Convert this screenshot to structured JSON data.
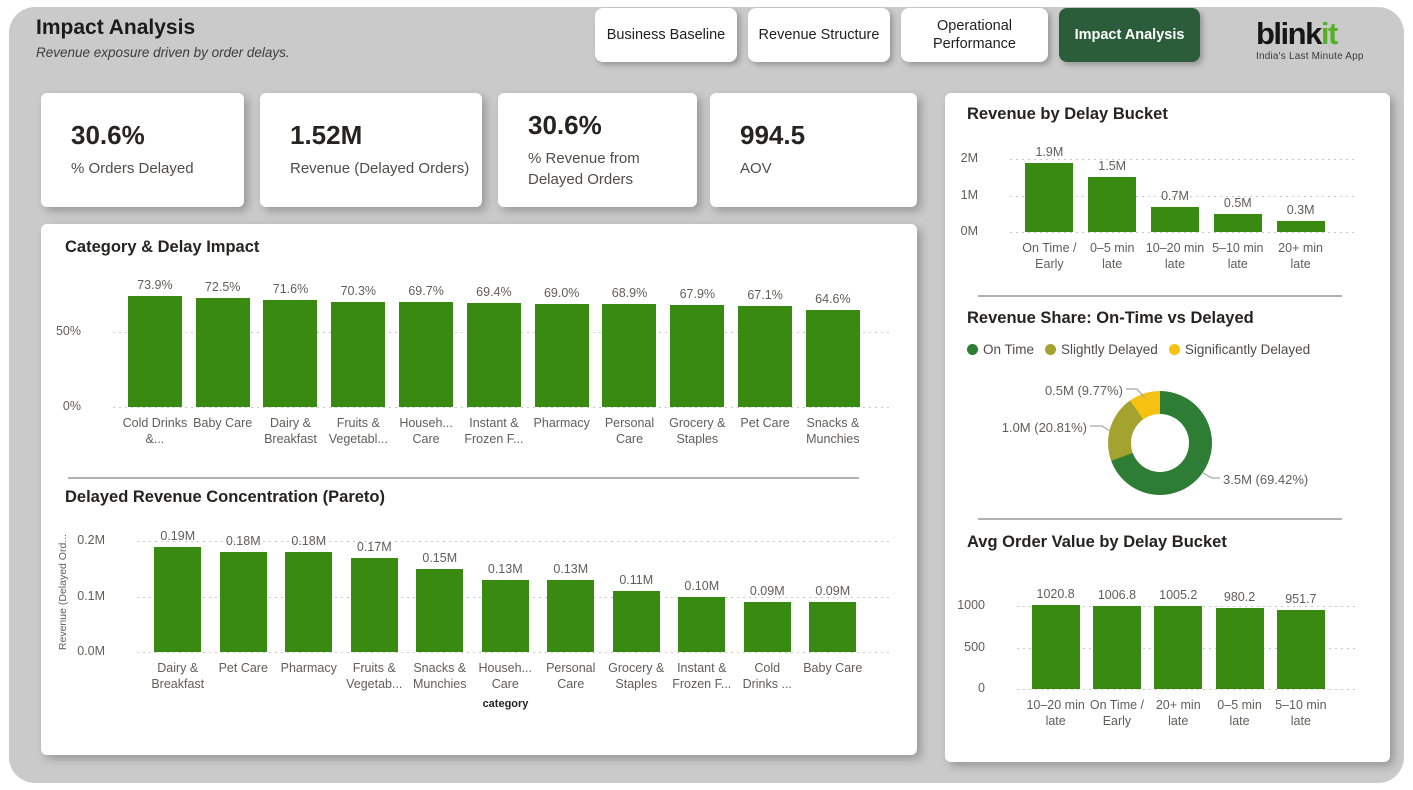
{
  "header": {
    "title": "Impact Analysis",
    "subtitle": "Revenue exposure driven by order delays.",
    "nav": [
      {
        "label": "Business Baseline",
        "active": false
      },
      {
        "label": "Revenue Structure",
        "active": false
      },
      {
        "label": "Operational Performance",
        "active": false
      },
      {
        "label": "Impact Analysis",
        "active": true
      }
    ],
    "logo": {
      "text_black": "blink",
      "text_green": "it",
      "tagline": "India's Last Minute App"
    }
  },
  "kpis": [
    {
      "value": "30.6%",
      "label": "% Orders Delayed"
    },
    {
      "value": "1.52M",
      "label": "Revenue (Delayed Orders)"
    },
    {
      "value": "30.6%",
      "label": "% Revenue from Delayed Orders"
    },
    {
      "value": "994.5",
      "label": "AOV"
    }
  ],
  "colors": {
    "bar_green": "#388a10",
    "donut_green": "#2e7d35",
    "olive": "#a4a32f",
    "yellow": "#f5c211",
    "active_nav_bg": "#2b5d3a",
    "logo_green": "#54b226",
    "panel_bg": "#cacaca"
  },
  "chart_data": [
    {
      "type": "bar",
      "title": "Category & Delay Impact",
      "xlabel": "",
      "ylabel": "",
      "categories": [
        "Cold Drinks &...",
        "Baby Care",
        "Dairy & Breakfast",
        "Fruits & Vegetabl...",
        "Househ... Care",
        "Instant & Frozen F...",
        "Pharmacy",
        "Personal Care",
        "Grocery & Staples",
        "Pet Care",
        "Snacks & Munchies"
      ],
      "values": [
        73.9,
        72.5,
        71.6,
        70.3,
        69.7,
        69.4,
        69.0,
        68.9,
        67.9,
        67.1,
        64.6
      ],
      "data_labels": [
        "73.9%",
        "72.5%",
        "71.6%",
        "70.3%",
        "69.7%",
        "69.4%",
        "69.0%",
        "68.9%",
        "67.9%",
        "67.1%",
        "64.6%"
      ],
      "yticks": [
        {
          "v": 0,
          "label": "0%"
        },
        {
          "v": 50,
          "label": "50%"
        }
      ],
      "ylim": [
        0,
        82
      ],
      "grid": true,
      "legend_position": "none"
    },
    {
      "type": "bar",
      "title": "Delayed Revenue Concentration (Pareto)",
      "xlabel": "category",
      "ylabel": "Revenue (Delayed Ord...",
      "categories": [
        "Dairy & Breakfast",
        "Pet Care",
        "Pharmacy",
        "Fruits & Vegetab...",
        "Snacks & Munchies",
        "Househ... Care",
        "Personal Care",
        "Grocery & Staples",
        "Instant & Frozen F...",
        "Cold Drinks ...",
        "Baby Care"
      ],
      "values": [
        0.19,
        0.18,
        0.18,
        0.17,
        0.15,
        0.13,
        0.13,
        0.11,
        0.1,
        0.09,
        0.09
      ],
      "data_labels": [
        "0.19M",
        "0.18M",
        "0.18M",
        "0.17M",
        "0.15M",
        "0.13M",
        "0.13M",
        "0.11M",
        "0.10M",
        "0.09M",
        "0.09M"
      ],
      "yticks": [
        {
          "v": 0,
          "label": "0.0M"
        },
        {
          "v": 0.1,
          "label": "0.1M"
        },
        {
          "v": 0.2,
          "label": "0.2M"
        }
      ],
      "ylim": [
        0,
        0.213
      ],
      "grid": true,
      "legend_position": "none"
    },
    {
      "type": "bar",
      "title": "Revenue by Delay Bucket",
      "xlabel": "",
      "ylabel": "",
      "categories": [
        "On Time / Early",
        "0–5 min late",
        "10–20 min late",
        "5–10 min late",
        "20+ min late"
      ],
      "values": [
        1.9,
        1.5,
        0.7,
        0.5,
        0.3
      ],
      "data_labels": [
        "1.9M",
        "1.5M",
        "0.7M",
        "0.5M",
        "0.3M"
      ],
      "yticks": [
        {
          "v": 0,
          "label": "0M"
        },
        {
          "v": 1,
          "label": "1M"
        },
        {
          "v": 2,
          "label": "2M"
        }
      ],
      "ylim": [
        0,
        2.25
      ],
      "grid": true,
      "legend_position": "none"
    },
    {
      "type": "pie",
      "title": "Revenue Share: On-Time vs Delayed",
      "legend_position": "top",
      "legend": [
        {
          "name": "On Time",
          "color_key": "donut_green"
        },
        {
          "name": "Slightly Delayed",
          "color_key": "olive"
        },
        {
          "name": "Significantly Delayed",
          "color_key": "yellow"
        }
      ],
      "slices": [
        {
          "name": "On Time",
          "value": 3.5,
          "pct": 69.42,
          "value_label": "3.5M (69.42%)",
          "color_key": "donut_green"
        },
        {
          "name": "Slightly Delayed",
          "value": 1.0,
          "pct": 20.81,
          "value_label": "1.0M (20.81%)",
          "color_key": "olive"
        },
        {
          "name": "Significantly Delayed",
          "value": 0.5,
          "pct": 9.77,
          "value_label": "0.5M (9.77%)",
          "color_key": "yellow"
        }
      ]
    },
    {
      "type": "bar",
      "title": "Avg Order Value by Delay Bucket",
      "xlabel": "",
      "ylabel": "",
      "categories": [
        "10–20 min late",
        "On Time / Early",
        "20+ min late",
        "0–5 min late",
        "5–10 min late"
      ],
      "values": [
        1020.8,
        1006.8,
        1005.2,
        980.2,
        951.7
      ],
      "data_labels": [
        "1020.8",
        "1006.8",
        "1005.2",
        "980.2",
        "951.7"
      ],
      "yticks": [
        {
          "v": 0,
          "label": "0"
        },
        {
          "v": 500,
          "label": "500"
        },
        {
          "v": 1000,
          "label": "1000"
        }
      ],
      "ylim": [
        0,
        1100
      ],
      "grid": true,
      "legend_position": "none"
    }
  ]
}
